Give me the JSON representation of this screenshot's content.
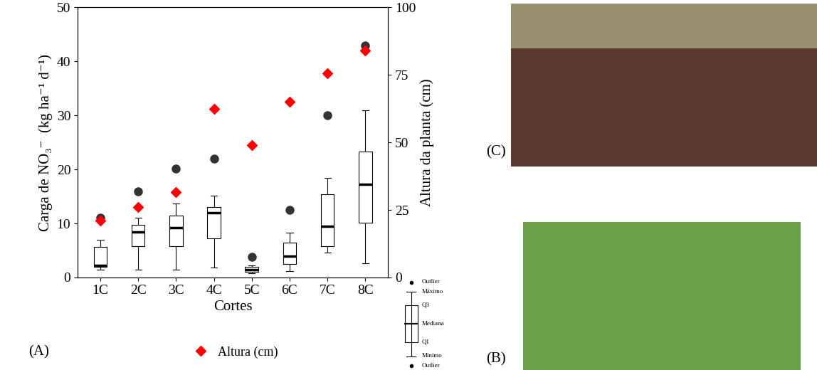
{
  "chart_data": {
    "type": "box",
    "x_label": "Cortes",
    "y_label": "Carga de NO₃⁻  (kg ha⁻¹ d⁻¹)",
    "y2_label": "Altura da planta (cm)",
    "categories": [
      "1C",
      "2C",
      "3C",
      "4C",
      "5C",
      "6C",
      "7C",
      "8C"
    ],
    "boxes": [
      {
        "whislo": 1.5,
        "q1": 2.0,
        "med": 2.3,
        "q3": 5.7,
        "whishi": 7.0,
        "fliers": [
          11.0
        ]
      },
      {
        "whislo": 1.5,
        "q1": 5.8,
        "med": 8.4,
        "q3": 9.8,
        "whishi": 11.0,
        "fliers": [
          16.0
        ]
      },
      {
        "whislo": 1.5,
        "q1": 5.8,
        "med": 9.2,
        "q3": 11.5,
        "whishi": 13.7,
        "fliers": [
          20.1
        ]
      },
      {
        "whislo": 1.8,
        "q1": 7.3,
        "med": 12.0,
        "q3": 13.0,
        "whishi": 15.2,
        "fliers": [
          22.0
        ]
      },
      {
        "whislo": 0.8,
        "q1": 1.0,
        "med": 1.4,
        "q3": 2.0,
        "whishi": 2.2,
        "fliers": [
          3.8
        ]
      },
      {
        "whislo": 1.2,
        "q1": 2.5,
        "med": 4.0,
        "q3": 6.5,
        "whishi": 8.3,
        "fliers": [
          12.5
        ]
      },
      {
        "whislo": 4.6,
        "q1": 5.8,
        "med": 9.5,
        "q3": 15.4,
        "whishi": 18.5,
        "fliers": [
          30.0
        ]
      },
      {
        "whislo": 2.6,
        "q1": 10.2,
        "med": 17.3,
        "q3": 23.3,
        "whishi": 31.0,
        "fliers": [
          43.0
        ]
      }
    ],
    "color": "#333333",
    "series": [
      {
        "name": "Altura (cm)",
        "type": "scatter",
        "axis": "y2",
        "color": "#ff0000",
        "marker": "D",
        "values": [
          21,
          26,
          31.5,
          62.5,
          49,
          65,
          75.5,
          84
        ]
      }
    ],
    "ylim": [
      0,
      50
    ],
    "yticks": [
      0,
      10,
      20,
      30,
      40,
      50
    ],
    "y2lim": [
      0,
      100
    ],
    "y2ticks": [
      0,
      25,
      50,
      75,
      100
    ],
    "legend": "lower center",
    "box_key": [
      "Outlier",
      "Máximo",
      "Q3",
      "Mediana",
      "Q1",
      "Mínimo",
      "Outlier"
    ]
  },
  "panel_labels": [
    "(A)",
    "(B)",
    "(C)"
  ]
}
